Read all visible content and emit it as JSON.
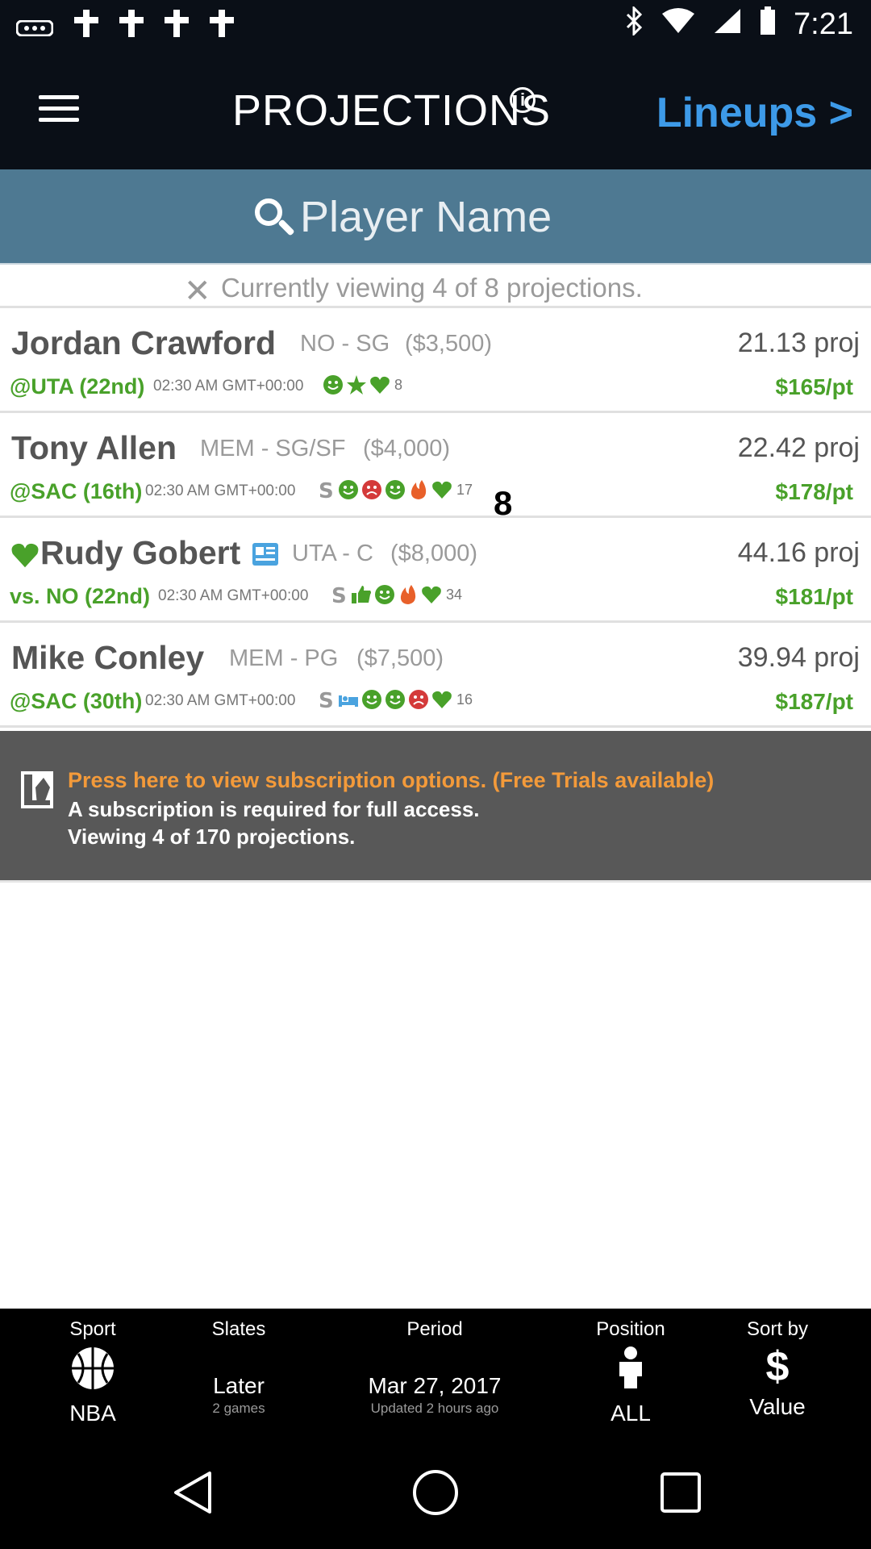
{
  "status": {
    "time": "7:21"
  },
  "header": {
    "title": "PROJECTIONS",
    "lineups_link": "Lineups >"
  },
  "search": {
    "placeholder": "Player Name"
  },
  "filter": {
    "text": "Currently viewing 4 of 8 projections."
  },
  "players": [
    {
      "name": "Jordan Crawford",
      "team_pos": "NO - SG",
      "salary": "($3,500)",
      "proj": "21.13 proj",
      "matchup": "@UTA (22nd)",
      "time": "02:30 AM GMT+00:00",
      "count": "8",
      "price": "$165/pt"
    },
    {
      "name": "Tony Allen",
      "team_pos": "MEM - SG/SF",
      "salary": "($4,000)",
      "proj": "22.42 proj",
      "matchup": "@SAC (16th)",
      "time": "02:30 AM GMT+00:00",
      "count": "17",
      "price": "$178/pt"
    },
    {
      "name": "Rudy Gobert",
      "team_pos": "UTA - C",
      "salary": "($8,000)",
      "proj": "44.16 proj",
      "matchup": "vs. NO (22nd)",
      "time": "02:30 AM GMT+00:00",
      "count": "34",
      "price": "$181/pt"
    },
    {
      "name": "Mike Conley",
      "team_pos": "MEM - PG",
      "salary": "($7,500)",
      "proj": "39.94 proj",
      "matchup": "@SAC (30th)",
      "time": "02:30 AM GMT+00:00",
      "count": "16",
      "price": "$187/pt"
    }
  ],
  "subscription": {
    "line1": "Press here to view subscription options. (Free Trials available)",
    "line2": "A subscription is required for full access.",
    "line3": "Viewing 4 of 170 projections."
  },
  "overlay_char": "8",
  "bottom": {
    "sport": {
      "label": "Sport",
      "value": "NBA"
    },
    "slates": {
      "label": "Slates",
      "value": "Later",
      "sub": "2 games"
    },
    "period": {
      "label": "Period",
      "value": "Mar 27, 2017",
      "sub": "Updated 2 hours ago"
    },
    "position": {
      "label": "Position",
      "value": "ALL"
    },
    "sort": {
      "label": "Sort by",
      "value": "Value"
    }
  },
  "colors": {
    "green": "#49a12a",
    "blue": "#3d9ae8",
    "orange": "#f39a3a",
    "search_bg": "#4e7992"
  }
}
